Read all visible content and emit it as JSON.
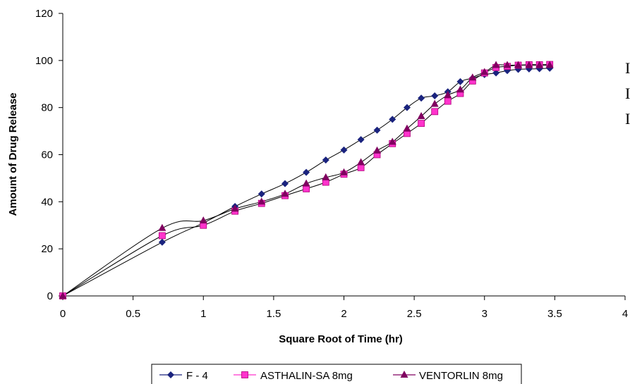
{
  "chart_data": {
    "type": "line",
    "xlabel": "Square Root of Time (hr)",
    "ylabel": "Amount of Drug Release",
    "xlim": [
      0,
      4
    ],
    "ylim": [
      0,
      120
    ],
    "xticks": [
      "0",
      "0.5",
      "1",
      "1.5",
      "2",
      "2.5",
      "3",
      "3.5",
      "4"
    ],
    "yticks": [
      "0",
      "20",
      "40",
      "60",
      "80",
      "100",
      "120"
    ],
    "grid": false,
    "legend_position": "bottom",
    "series": [
      {
        "name": "F - 4",
        "marker": "diamond",
        "color": "#1a237e",
        "points": [
          [
            0,
            0
          ],
          [
            0.707,
            22.8
          ],
          [
            1,
            31
          ],
          [
            1.225,
            38
          ],
          [
            1.414,
            43.3
          ],
          [
            1.581,
            47.7
          ],
          [
            1.732,
            52.5
          ],
          [
            1.871,
            57.7
          ],
          [
            2,
            62
          ],
          [
            2.121,
            66.4
          ],
          [
            2.236,
            70.4
          ],
          [
            2.345,
            75
          ],
          [
            2.449,
            80
          ],
          [
            2.55,
            84
          ],
          [
            2.646,
            85
          ],
          [
            2.739,
            86.7
          ],
          [
            2.828,
            91
          ],
          [
            2.915,
            92.5
          ],
          [
            3,
            94
          ],
          [
            3.082,
            94.7
          ],
          [
            3.162,
            95.7
          ],
          [
            3.24,
            96.2
          ],
          [
            3.317,
            96.4
          ],
          [
            3.391,
            96.5
          ],
          [
            3.464,
            96.7
          ]
        ]
      },
      {
        "name": "ASTHALIN-SA 8mg",
        "marker": "square",
        "color": "#ff33cc",
        "points": [
          [
            0,
            0
          ],
          [
            0.707,
            25.6
          ],
          [
            1,
            30
          ],
          [
            1.225,
            36
          ],
          [
            1.414,
            39.3
          ],
          [
            1.581,
            42.6
          ],
          [
            1.732,
            45.5
          ],
          [
            1.871,
            48.3
          ],
          [
            2,
            51.7
          ],
          [
            2.121,
            54.5
          ],
          [
            2.236,
            60
          ],
          [
            2.345,
            64.7
          ],
          [
            2.449,
            69
          ],
          [
            2.55,
            73.3
          ],
          [
            2.646,
            78.3
          ],
          [
            2.739,
            82.7
          ],
          [
            2.828,
            86
          ],
          [
            2.915,
            91.3
          ],
          [
            3,
            94.7
          ],
          [
            3.082,
            97
          ],
          [
            3.162,
            97.5
          ],
          [
            3.24,
            98
          ],
          [
            3.317,
            98.2
          ],
          [
            3.391,
            98.2
          ],
          [
            3.464,
            98.3
          ]
        ]
      },
      {
        "name": "VENTORLIN 8mg",
        "marker": "triangle",
        "color": "#800060",
        "points": [
          [
            0,
            0
          ],
          [
            0.707,
            28.8
          ],
          [
            1,
            32
          ],
          [
            1.225,
            37
          ],
          [
            1.414,
            40
          ],
          [
            1.581,
            43.3
          ],
          [
            1.732,
            47.7
          ],
          [
            1.871,
            50.3
          ],
          [
            2,
            52.4
          ],
          [
            2.121,
            56.7
          ],
          [
            2.236,
            61.7
          ],
          [
            2.345,
            65.4
          ],
          [
            2.449,
            71
          ],
          [
            2.55,
            76.3
          ],
          [
            2.646,
            81.5
          ],
          [
            2.739,
            85.3
          ],
          [
            2.828,
            87.6
          ],
          [
            2.915,
            92.7
          ],
          [
            3,
            95
          ],
          [
            3.082,
            98
          ],
          [
            3.162,
            98
          ],
          [
            3.24,
            98
          ],
          [
            3.317,
            98
          ],
          [
            3.391,
            98
          ],
          [
            3.464,
            98
          ]
        ]
      }
    ]
  },
  "side_text": [
    "I",
    "I",
    "I"
  ]
}
